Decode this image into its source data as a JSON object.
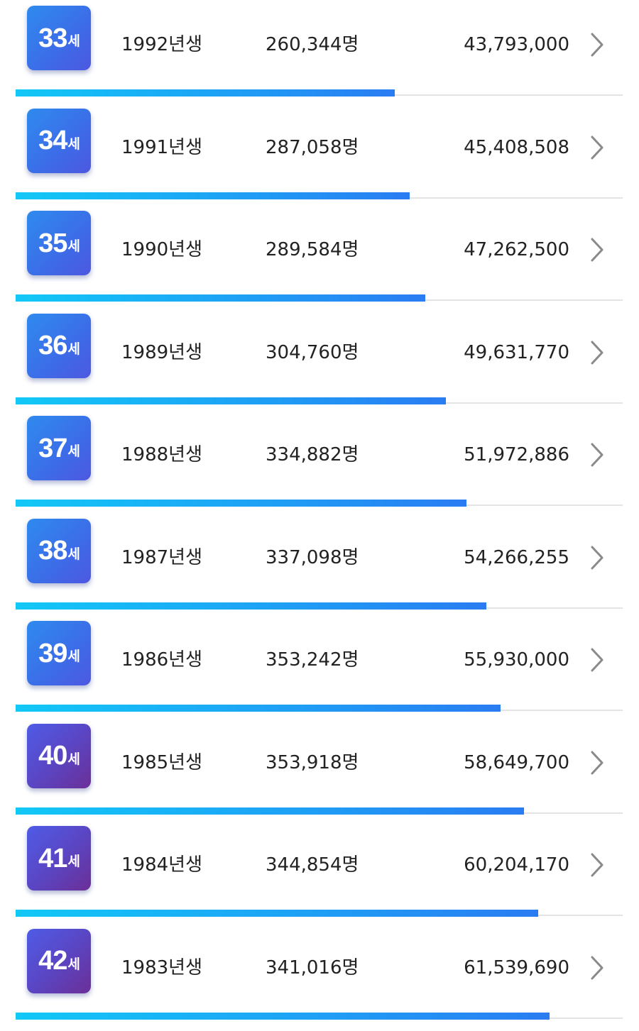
{
  "rows": [
    {
      "age": "33",
      "age_unit": "세",
      "birth_year": "1992년생",
      "population": "260,344명",
      "amount": "43,793,000",
      "badge_color": "#3b6ee8",
      "progress": 0.625,
      "chevron_icon": "chevron-right-icon"
    },
    {
      "age": "34",
      "age_unit": "세",
      "birth_year": "1991년생",
      "population": "287,058명",
      "amount": "45,408,508",
      "badge_color": "#3b6ee8",
      "progress": 0.649,
      "chevron_icon": "chevron-right-icon"
    },
    {
      "age": "35",
      "age_unit": "세",
      "birth_year": "1990년생",
      "population": "289,584명",
      "amount": "47,262,500",
      "badge_color": "#3b6ee8",
      "progress": 0.675,
      "chevron_icon": "chevron-right-icon"
    },
    {
      "age": "36",
      "age_unit": "세",
      "birth_year": "1989년생",
      "population": "304,760명",
      "amount": "49,631,770",
      "badge_color": "#3b6ee8",
      "progress": 0.709,
      "chevron_icon": "chevron-right-icon"
    },
    {
      "age": "37",
      "age_unit": "세",
      "birth_year": "1988년생",
      "population": "334,882명",
      "amount": "51,972,886",
      "badge_color": "#3b6ee8",
      "progress": 0.743,
      "chevron_icon": "chevron-right-icon"
    },
    {
      "age": "38",
      "age_unit": "세",
      "birth_year": "1987년생",
      "population": "337,098명",
      "amount": "54,266,255",
      "badge_color": "#3b6ee8",
      "progress": 0.775,
      "chevron_icon": "chevron-right-icon"
    },
    {
      "age": "39",
      "age_unit": "세",
      "birth_year": "1986년생",
      "population": "353,242명",
      "amount": "55,930,000",
      "badge_color": "#3b6ee8",
      "progress": 0.799,
      "chevron_icon": "chevron-right-icon"
    },
    {
      "age": "40",
      "age_unit": "세",
      "birth_year": "1985년생",
      "population": "353,918명",
      "amount": "58,649,700",
      "badge_color": "#5a46c4",
      "progress": 0.838,
      "chevron_icon": "chevron-right-icon"
    },
    {
      "age": "41",
      "age_unit": "세",
      "birth_year": "1984년생",
      "population": "344,854명",
      "amount": "60,204,170",
      "badge_color": "#5a46c4",
      "progress": 0.861,
      "chevron_icon": "chevron-right-icon"
    },
    {
      "age": "42",
      "age_unit": "세",
      "birth_year": "1983년생",
      "population": "341,016명",
      "amount": "61,539,690",
      "badge_color": "#5a46c4",
      "progress": 0.879,
      "chevron_icon": "chevron-right-icon"
    }
  ],
  "colors": {
    "badge_blue": "#3b6ee8",
    "badge_purple": "#5a46c4",
    "bar_start": "#12c8f6",
    "bar_end": "#2a7cf2",
    "track": "#e4e4e4",
    "text": "#222222",
    "chevron": "#8a8a8a"
  }
}
